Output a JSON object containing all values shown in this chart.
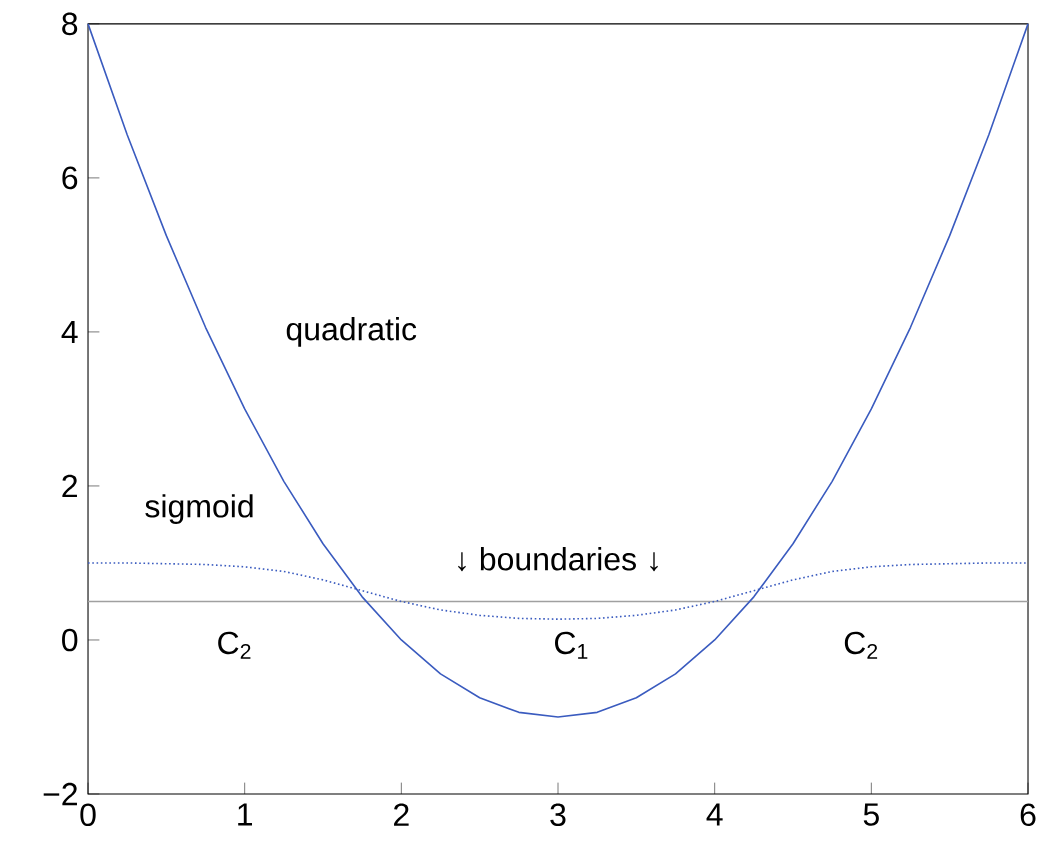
{
  "chart_data": {
    "type": "line",
    "x": [
      0,
      0.25,
      0.5,
      0.75,
      1,
      1.25,
      1.5,
      1.75,
      2,
      2.25,
      2.5,
      2.75,
      3,
      3.25,
      3.5,
      3.75,
      4,
      4.25,
      4.5,
      4.75,
      5,
      5.25,
      5.5,
      5.75,
      6
    ],
    "series": [
      {
        "name": "quadratic",
        "color": "#3a5bbf",
        "line_style": "solid",
        "values": [
          8,
          6.56,
          5.25,
          4.06,
          3,
          2.06,
          1.25,
          0.56,
          0,
          -0.44,
          -0.75,
          -0.94,
          -1,
          -0.94,
          -0.75,
          -0.44,
          0,
          0.56,
          1.25,
          2.06,
          3,
          4.06,
          5.25,
          6.56,
          8
        ]
      },
      {
        "name": "sigmoid",
        "color": "#3a5bbf",
        "line_style": "dotted",
        "values": [
          1,
          1,
          0.99,
          0.98,
          0.95,
          0.89,
          0.78,
          0.64,
          0.5,
          0.39,
          0.32,
          0.28,
          0.27,
          0.28,
          0.32,
          0.39,
          0.5,
          0.64,
          0.78,
          0.89,
          0.95,
          0.98,
          0.99,
          1,
          1
        ]
      }
    ],
    "ref_lines": [
      {
        "axis": "y",
        "value": 0.5,
        "color": "#a0a0a0"
      }
    ],
    "annotations": [
      "↓  boundaries ↓",
      "C$_{2}$",
      "C$_{1}$",
      "C$_{2}$"
    ],
    "xlim": [
      0,
      6
    ],
    "ylim": [
      -2,
      8
    ],
    "xticks": [
      0,
      1,
      2,
      3,
      4,
      5,
      6
    ],
    "yticks": [
      {
        "value": -2,
        "label": "−2"
      },
      0,
      2,
      4,
      6,
      8
    ],
    "grid": false,
    "legend": false,
    "marker": "none"
  }
}
